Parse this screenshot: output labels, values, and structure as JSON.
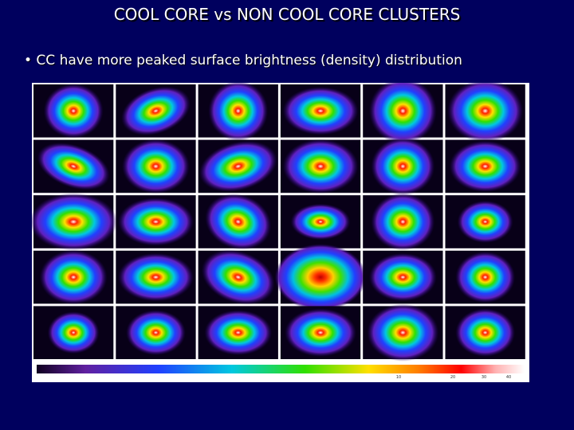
{
  "header": {
    "title": "COOL CORE vs NON COOL CORE CLUSTERS"
  },
  "bullets": [
    "• CC have more peaked surface brightness (density) distribution"
  ],
  "colorbar": {
    "ticks": [
      "10",
      "20",
      "30",
      "40"
    ]
  }
}
